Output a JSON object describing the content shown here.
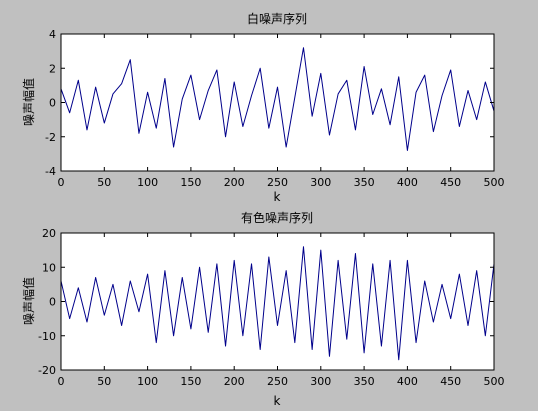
{
  "figure": {
    "background": "#c0c0c0",
    "axes_background": "#ffffff",
    "line_color": "#00008b"
  },
  "chart_data": [
    {
      "type": "line",
      "title": "白噪声序列",
      "xlabel": "k",
      "ylabel": "噪声幅值",
      "xlim": [
        0,
        500
      ],
      "ylim": [
        -4,
        4
      ],
      "xticks": [
        0,
        50,
        100,
        150,
        200,
        250,
        300,
        350,
        400,
        450,
        500
      ],
      "yticks": [
        -4,
        -2,
        0,
        2,
        4
      ],
      "grid": false,
      "series": [
        {
          "x": [
            0,
            10,
            20,
            30,
            40,
            50,
            60,
            70,
            80,
            90,
            100,
            110,
            120,
            130,
            140,
            150,
            160,
            170,
            180,
            190,
            200,
            210,
            220,
            230,
            240,
            250,
            260,
            270,
            280,
            290,
            300,
            310,
            320,
            330,
            340,
            350,
            360,
            370,
            380,
            390,
            400,
            410,
            420,
            430,
            440,
            450,
            460,
            470,
            480,
            490,
            500
          ],
          "values": [
            0.8,
            -0.6,
            1.3,
            -1.6,
            0.9,
            -1.2,
            0.5,
            1.1,
            2.5,
            -1.8,
            0.6,
            -1.5,
            1.4,
            -2.6,
            0.2,
            1.6,
            -1.0,
            0.7,
            1.9,
            -2.0,
            1.2,
            -1.4,
            0.4,
            2.0,
            -1.5,
            0.9,
            -2.6,
            0.3,
            3.2,
            -0.8,
            1.7,
            -1.9,
            0.5,
            1.3,
            -1.6,
            2.1,
            -0.7,
            0.8,
            -1.3,
            1.5,
            -2.8,
            0.6,
            1.6,
            -1.7,
            0.4,
            1.9,
            -1.4,
            0.7,
            -1.0,
            1.2,
            -0.5
          ]
        }
      ]
    },
    {
      "type": "line",
      "title": "有色噪声序列",
      "xlabel": "k",
      "ylabel": "噪声幅值",
      "xlim": [
        0,
        500
      ],
      "ylim": [
        -20,
        20
      ],
      "xticks": [
        0,
        50,
        100,
        150,
        200,
        250,
        300,
        350,
        400,
        450,
        500
      ],
      "yticks": [
        -20,
        -10,
        0,
        10,
        20
      ],
      "grid": false,
      "series": [
        {
          "x": [
            0,
            10,
            20,
            30,
            40,
            50,
            60,
            70,
            80,
            90,
            100,
            110,
            120,
            130,
            140,
            150,
            160,
            170,
            180,
            190,
            200,
            210,
            220,
            230,
            240,
            250,
            260,
            270,
            280,
            290,
            300,
            310,
            320,
            330,
            340,
            350,
            360,
            370,
            380,
            390,
            400,
            410,
            420,
            430,
            440,
            450,
            460,
            470,
            480,
            490,
            500
          ],
          "values": [
            6,
            -5,
            4,
            -6,
            7,
            -4,
            5,
            -7,
            6,
            -3,
            8,
            -12,
            9,
            -10,
            7,
            -8,
            10,
            -9,
            11,
            -13,
            12,
            -10,
            11,
            -14,
            13,
            -7,
            9,
            -12,
            16,
            -14,
            15,
            -16,
            12,
            -11,
            14,
            -15,
            11,
            -13,
            12,
            -17,
            12,
            -12,
            6,
            -6,
            5,
            -5,
            8,
            -7,
            9,
            -10,
            11
          ]
        }
      ]
    }
  ]
}
